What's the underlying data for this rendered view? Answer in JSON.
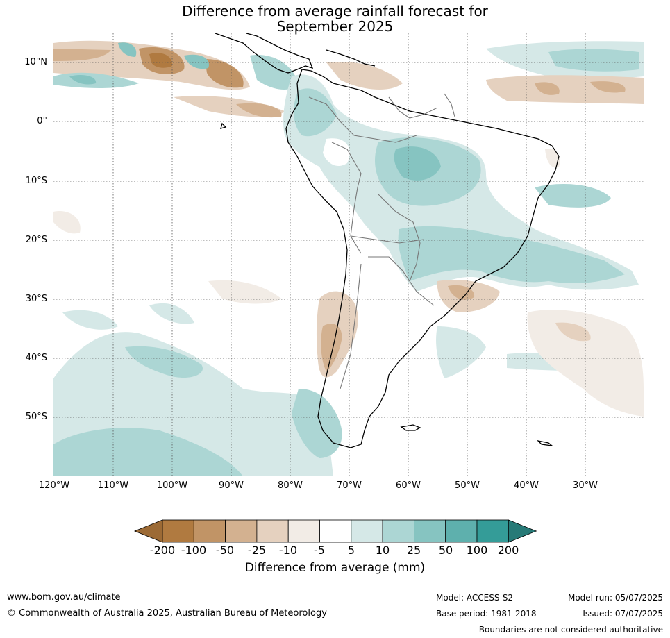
{
  "title": {
    "line1": "Difference from average rainfall forecast for",
    "line2": "September 2025"
  },
  "map": {
    "lat_labels": [
      "10°N",
      "0°",
      "10°S",
      "20°S",
      "30°S",
      "40°S",
      "50°S"
    ],
    "lon_labels": [
      "120°W",
      "110°W",
      "100°W",
      "90°W",
      "80°W",
      "70°W",
      "60°W",
      "50°W",
      "40°W",
      "30°W"
    ]
  },
  "legend": {
    "ticks": [
      "-200",
      "-100",
      "-50",
      "-25",
      "-10",
      "-5",
      "5",
      "10",
      "25",
      "50",
      "100",
      "200"
    ],
    "colors": [
      "#9c6a35",
      "#b07a40",
      "#c19466",
      "#d3b190",
      "#e5d1bf",
      "#f2ece6",
      "#ffffff",
      "#d5e8e7",
      "#acd6d4",
      "#86c4c1",
      "#5eb0ad",
      "#349c98",
      "#277a77"
    ],
    "label": "Difference from average (mm)"
  },
  "footer": {
    "url": "www.bom.gov.au/climate",
    "copyright": "© Commonwealth of Australia 2025, Australian Bureau of Meteorology",
    "model": "Model: ACCESS-S2",
    "base_period": "Base period: 1981-2018",
    "model_run": "Model run: 05/07/2025",
    "issued": "Issued: 07/07/2025",
    "disclaimer": "Boundaries are not considered authoritative"
  }
}
